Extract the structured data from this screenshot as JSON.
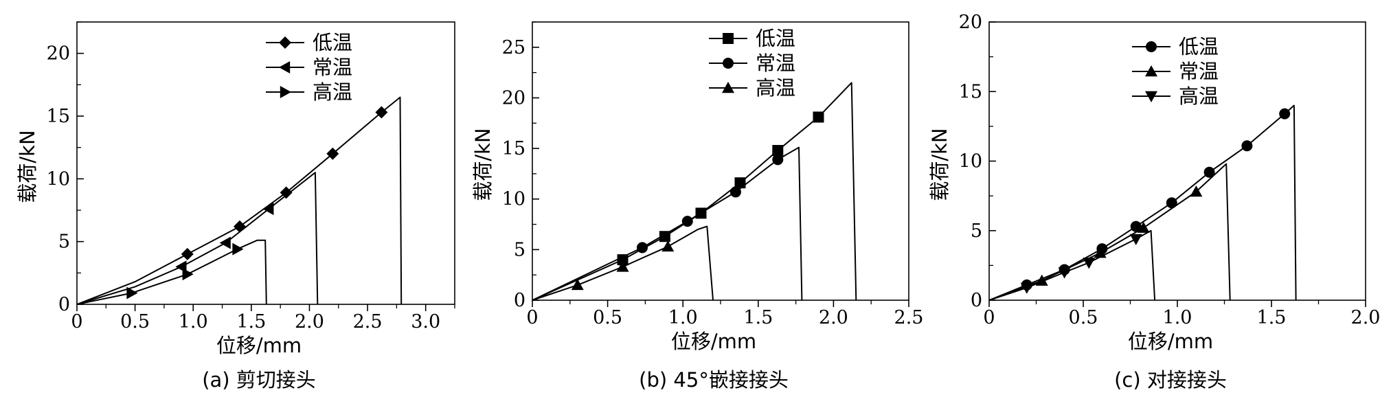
{
  "chart_data": [
    {
      "type": "line",
      "caption": "(a) 剪切接头",
      "xlabel": "位移/mm",
      "ylabel": "载荷/kN",
      "xlim": [
        0,
        3.25
      ],
      "ylim": [
        0,
        22.5
      ],
      "xticks": [
        0,
        0.5,
        1.0,
        1.5,
        2.0,
        2.5,
        3.0
      ],
      "xtick_labels": [
        "0",
        "0.5",
        "1.0",
        "1.5",
        "2.0",
        "2.5",
        "3.0"
      ],
      "yticks": [
        0,
        5,
        10,
        15,
        20
      ],
      "ytick_labels": [
        "0",
        "5",
        "10",
        "15",
        "20"
      ],
      "legend_position": "top-center",
      "series": [
        {
          "name": "低温",
          "marker": "diamond",
          "line": [
            [
              0,
              0
            ],
            [
              0.5,
              1.8
            ],
            [
              0.95,
              4.0
            ],
            [
              1.4,
              6.2
            ],
            [
              1.8,
              8.9
            ],
            [
              2.2,
              12.0
            ],
            [
              2.62,
              15.3
            ],
            [
              2.78,
              16.5
            ],
            [
              2.79,
              0
            ]
          ],
          "markers": [
            [
              0.95,
              4.0
            ],
            [
              1.4,
              6.2
            ],
            [
              1.8,
              8.9
            ],
            [
              2.2,
              12.0
            ],
            [
              2.62,
              15.3
            ]
          ]
        },
        {
          "name": "常温",
          "marker": "triangle-left",
          "line": [
            [
              0,
              0
            ],
            [
              0.5,
              1.4
            ],
            [
              0.9,
              3.0
            ],
            [
              1.28,
              4.9
            ],
            [
              1.65,
              7.6
            ],
            [
              2.05,
              10.5
            ],
            [
              2.07,
              0
            ]
          ],
          "markers": [
            [
              0.9,
              3.0
            ],
            [
              1.28,
              4.9
            ],
            [
              1.65,
              7.6
            ]
          ]
        },
        {
          "name": "高温",
          "marker": "triangle-right",
          "line": [
            [
              0,
              0
            ],
            [
              0.47,
              0.9
            ],
            [
              0.95,
              2.4
            ],
            [
              1.38,
              4.4
            ],
            [
              1.55,
              5.1
            ],
            [
              1.62,
              5.1
            ],
            [
              1.63,
              0
            ]
          ],
          "markers": [
            [
              0.47,
              0.9
            ],
            [
              0.95,
              2.4
            ],
            [
              1.38,
              4.4
            ]
          ]
        }
      ]
    },
    {
      "type": "line",
      "caption": "(b) 45°嵌接接头",
      "xlabel": "位移/mm",
      "ylabel": "载荷/kN",
      "xlim": [
        0,
        2.5
      ],
      "ylim": [
        0,
        27.5
      ],
      "xticks": [
        0,
        0.5,
        1.0,
        1.5,
        2.0,
        2.5
      ],
      "xtick_labels": [
        "0",
        "0.5",
        "1.0",
        "1.5",
        "2.0",
        "2.5"
      ],
      "yticks": [
        0,
        5,
        10,
        15,
        20,
        25
      ],
      "ytick_labels": [
        "0",
        "5",
        "10",
        "15",
        "20",
        "25"
      ],
      "legend_position": "top-center",
      "series": [
        {
          "name": "低温",
          "marker": "square",
          "line": [
            [
              0,
              0
            ],
            [
              0.6,
              4.0
            ],
            [
              0.88,
              6.3
            ],
            [
              1.12,
              8.6
            ],
            [
              1.38,
              11.6
            ],
            [
              1.63,
              14.8
            ],
            [
              1.9,
              18.1
            ],
            [
              2.12,
              21.5
            ],
            [
              2.15,
              0
            ]
          ],
          "markers": [
            [
              0.6,
              4.0
            ],
            [
              0.88,
              6.3
            ],
            [
              1.12,
              8.6
            ],
            [
              1.38,
              11.6
            ],
            [
              1.63,
              14.8
            ],
            [
              1.9,
              18.1
            ]
          ]
        },
        {
          "name": "常温",
          "marker": "circle",
          "line": [
            [
              0,
              0
            ],
            [
              0.73,
              5.2
            ],
            [
              1.03,
              7.8
            ],
            [
              1.35,
              10.7
            ],
            [
              1.63,
              13.9
            ],
            [
              1.77,
              15.1
            ],
            [
              1.79,
              0
            ]
          ],
          "markers": [
            [
              0.73,
              5.2
            ],
            [
              1.03,
              7.8
            ],
            [
              1.35,
              10.7
            ],
            [
              1.63,
              13.9
            ]
          ]
        },
        {
          "name": "高温",
          "marker": "triangle-up",
          "line": [
            [
              0,
              0
            ],
            [
              0.3,
              1.5
            ],
            [
              0.6,
              3.3
            ],
            [
              0.9,
              5.3
            ],
            [
              1.1,
              7.0
            ],
            [
              1.16,
              7.3
            ],
            [
              1.2,
              0
            ]
          ],
          "markers": [
            [
              0.3,
              1.5
            ],
            [
              0.6,
              3.3
            ],
            [
              0.9,
              5.3
            ]
          ]
        }
      ]
    },
    {
      "type": "line",
      "caption": "(c) 对接接头",
      "xlabel": "位移/mm",
      "ylabel": "载荷/kN",
      "xlim": [
        0,
        2.0
      ],
      "ylim": [
        0,
        20
      ],
      "xticks": [
        0,
        0.5,
        1.0,
        1.5,
        2.0
      ],
      "xtick_labels": [
        "0",
        "0.5",
        "1.0",
        "1.5",
        "2.0"
      ],
      "yticks": [
        0,
        5,
        10,
        15,
        20
      ],
      "ytick_labels": [
        "0",
        "5",
        "10",
        "15",
        "20"
      ],
      "legend_position": "top-center",
      "series": [
        {
          "name": "低温",
          "marker": "circle",
          "line": [
            [
              0,
              0
            ],
            [
              0.2,
              1.1
            ],
            [
              0.4,
              2.2
            ],
            [
              0.6,
              3.7
            ],
            [
              0.78,
              5.3
            ],
            [
              0.97,
              7.0
            ],
            [
              1.17,
              9.2
            ],
            [
              1.37,
              11.1
            ],
            [
              1.57,
              13.4
            ],
            [
              1.62,
              14.0
            ],
            [
              1.63,
              0
            ]
          ],
          "markers": [
            [
              0.2,
              1.1
            ],
            [
              0.4,
              2.2
            ],
            [
              0.6,
              3.7
            ],
            [
              0.78,
              5.3
            ],
            [
              0.97,
              7.0
            ],
            [
              1.17,
              9.2
            ],
            [
              1.37,
              11.1
            ],
            [
              1.57,
              13.4
            ]
          ]
        },
        {
          "name": "常温",
          "marker": "triangle-up",
          "line": [
            [
              0,
              0
            ],
            [
              0.28,
              1.4
            ],
            [
              0.59,
              3.4
            ],
            [
              0.82,
              5.2
            ],
            [
              1.1,
              7.8
            ],
            [
              1.26,
              9.8
            ],
            [
              1.28,
              0
            ]
          ],
          "markers": [
            [
              0.28,
              1.4
            ],
            [
              0.59,
              3.4
            ],
            [
              0.82,
              5.2
            ],
            [
              1.1,
              7.8
            ]
          ]
        },
        {
          "name": "高温",
          "marker": "triangle-down",
          "line": [
            [
              0,
              0
            ],
            [
              0.2,
              0.9
            ],
            [
              0.4,
              2.0
            ],
            [
              0.53,
              2.7
            ],
            [
              0.78,
              4.4
            ],
            [
              0.86,
              5.0
            ],
            [
              0.88,
              0
            ]
          ],
          "markers": [
            [
              0.2,
              0.9
            ],
            [
              0.4,
              2.0
            ],
            [
              0.53,
              2.7
            ],
            [
              0.78,
              4.4
            ]
          ]
        }
      ]
    }
  ]
}
